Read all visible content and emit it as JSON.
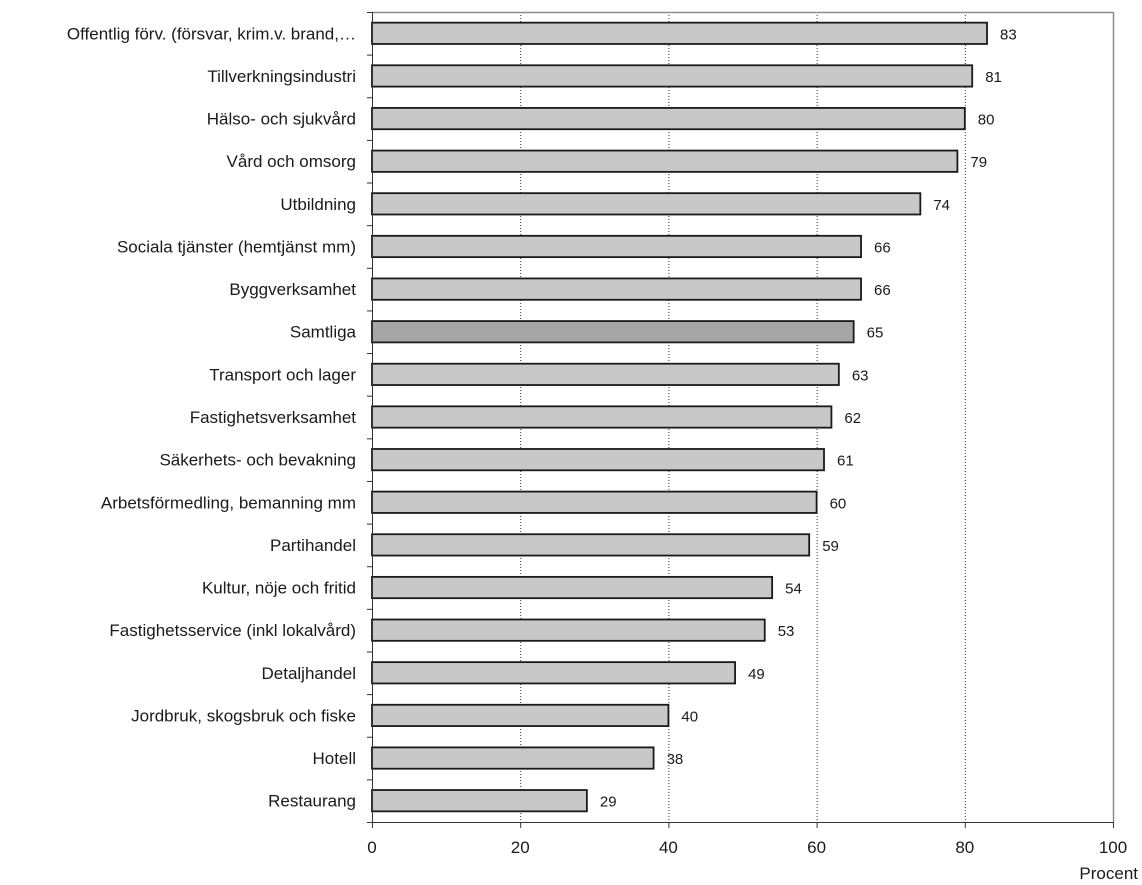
{
  "chart_data": {
    "type": "bar",
    "orientation": "horizontal",
    "categories": [
      "Offentlig förv. (försvar, krim.v. brand,…",
      "Tillverkningsindustri",
      "Hälso- och sjukvård",
      "Vård och omsorg",
      "Utbildning",
      "Sociala tjänster (hemtjänst mm)",
      "Byggverksamhet",
      "Samtliga",
      "Transport och lager",
      "Fastighetsverksamhet",
      "Säkerhets- och bevakning",
      "Arbetsförmedling, bemanning mm",
      "Partihandel",
      "Kultur, nöje och fritid",
      "Fastighetsservice (inkl lokalvård)",
      "Detaljhandel",
      "Jordbruk, skogsbruk och fiske",
      "Hotell",
      "Restaurang"
    ],
    "values": [
      83,
      81,
      80,
      79,
      74,
      66,
      66,
      65,
      63,
      62,
      61,
      60,
      59,
      54,
      53,
      49,
      40,
      38,
      29
    ],
    "value_labels": [
      "83",
      "81",
      "80",
      "79",
      "74",
      "66",
      "66",
      "65",
      "63",
      "62",
      "61",
      "60",
      "59",
      "54",
      "53",
      "49",
      "40",
      "38",
      "29"
    ],
    "highlight_category": "Samtliga",
    "xlim": [
      0,
      100
    ],
    "xticks": [
      0,
      20,
      40,
      60,
      80,
      100
    ],
    "xtick_labels": [
      "0",
      "20",
      "40",
      "60",
      "80",
      "100"
    ],
    "xlabel": "Procent",
    "grid": "vertical-dotted",
    "colors": {
      "bar": "#c8c8c8",
      "bar_highlight": "#a6a6a6",
      "bar_stroke": "#1a1a1a",
      "frame": "#8c8c8c",
      "grid": "#333333"
    }
  }
}
